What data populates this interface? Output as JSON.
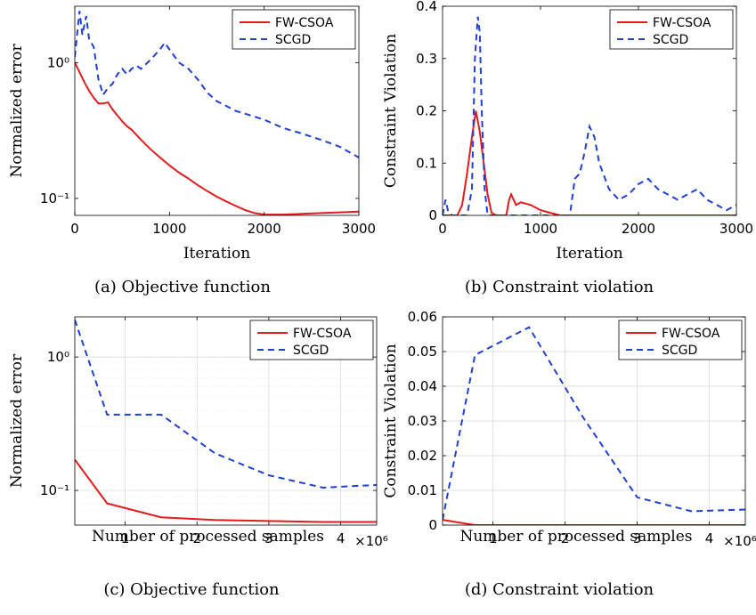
{
  "chart_data": [
    {
      "type": "line",
      "panel": "a",
      "caption": "(a) Objective function",
      "xlabel": "Iteration",
      "ylabel": "Normalized error",
      "yscale": "log",
      "xlim": [
        0,
        3000
      ],
      "ylim": [
        0.075,
        2.6
      ],
      "xticks": [
        0,
        1000,
        2000,
        3000
      ],
      "xtick_labels": [
        "0",
        "1000",
        "2000",
        "3000"
      ],
      "yticks": [
        0.1,
        1
      ],
      "ytick_labels": [
        "10⁻¹",
        "10⁰"
      ],
      "grid": false,
      "legend": "top-right",
      "series": [
        {
          "name": "FW-CSOA",
          "color": "#e41a1c",
          "style": "solid",
          "x": [
            0,
            50,
            100,
            150,
            200,
            250,
            300,
            350,
            400,
            500,
            550,
            600,
            700,
            800,
            900,
            1000,
            1100,
            1200,
            1300,
            1400,
            1500,
            1600,
            1700,
            1800,
            1900,
            2000,
            2200,
            2400,
            2600,
            2800,
            3000
          ],
          "y": [
            1.0,
            0.85,
            0.72,
            0.62,
            0.55,
            0.5,
            0.5,
            0.51,
            0.45,
            0.37,
            0.34,
            0.32,
            0.27,
            0.23,
            0.2,
            0.175,
            0.155,
            0.14,
            0.125,
            0.113,
            0.103,
            0.095,
            0.088,
            0.082,
            0.078,
            0.076,
            0.076,
            0.077,
            0.078,
            0.079,
            0.08
          ]
        },
        {
          "name": "SCGD",
          "color": "#1f3fd6",
          "style": "dashed",
          "x": [
            0,
            50,
            80,
            120,
            150,
            200,
            250,
            300,
            350,
            400,
            450,
            500,
            550,
            600,
            650,
            700,
            800,
            900,
            950,
            1000,
            1100,
            1200,
            1300,
            1400,
            1500,
            1600,
            1700,
            1800,
            1900,
            2000,
            2200,
            2400,
            2600,
            2800,
            3000
          ],
          "y": [
            1.1,
            2.4,
            1.6,
            2.2,
            1.5,
            1.3,
            0.75,
            0.58,
            0.65,
            0.7,
            0.82,
            0.9,
            0.82,
            0.9,
            0.95,
            0.9,
            1.05,
            1.25,
            1.4,
            1.25,
            1.0,
            0.9,
            0.75,
            0.6,
            0.52,
            0.48,
            0.44,
            0.42,
            0.4,
            0.38,
            0.33,
            0.3,
            0.27,
            0.24,
            0.2
          ]
        }
      ]
    },
    {
      "type": "line",
      "panel": "b",
      "caption": "(b) Constraint violation",
      "xlabel": "Iteration",
      "ylabel": "Constraint Violation",
      "yscale": "linear",
      "xlim": [
        0,
        3000
      ],
      "ylim": [
        0,
        0.4
      ],
      "xticks": [
        0,
        1000,
        2000,
        3000
      ],
      "xtick_labels": [
        "0",
        "1000",
        "2000",
        "3000"
      ],
      "yticks": [
        0,
        0.1,
        0.2,
        0.3,
        0.4
      ],
      "ytick_labels": [
        "0",
        "0.1",
        "0.2",
        "0.3",
        "0.4"
      ],
      "grid": false,
      "legend": "top-right",
      "series": [
        {
          "name": "FW-CSOA",
          "color": "#e41a1c",
          "style": "solid",
          "x": [
            0,
            150,
            200,
            250,
            300,
            340,
            380,
            420,
            460,
            500,
            550,
            600,
            650,
            680,
            700,
            750,
            800,
            900,
            1000,
            1100,
            1200,
            1300,
            3000
          ],
          "y": [
            0,
            0,
            0.02,
            0.08,
            0.15,
            0.2,
            0.16,
            0.1,
            0.04,
            0.005,
            0,
            0,
            0,
            0.03,
            0.04,
            0.02,
            0.025,
            0.02,
            0.01,
            0.005,
            0,
            0,
            0
          ]
        },
        {
          "name": "SCGD",
          "color": "#1f3fd6",
          "style": "dashed",
          "x": [
            0,
            30,
            60,
            100,
            250,
            300,
            330,
            360,
            380,
            400,
            430,
            460,
            500,
            600,
            1300,
            1350,
            1400,
            1450,
            1500,
            1550,
            1600,
            1700,
            1800,
            1900,
            2000,
            2100,
            2200,
            2300,
            2400,
            2500,
            2600,
            2700,
            2800,
            2900,
            3000
          ],
          "y": [
            0,
            0.03,
            0.005,
            0,
            0,
            0.05,
            0.3,
            0.38,
            0.35,
            0.2,
            0.05,
            0,
            0,
            0,
            0,
            0.07,
            0.08,
            0.12,
            0.17,
            0.15,
            0.1,
            0.05,
            0.03,
            0.04,
            0.06,
            0.07,
            0.05,
            0.04,
            0.03,
            0.04,
            0.05,
            0.03,
            0.02,
            0.01,
            0.02
          ]
        }
      ]
    },
    {
      "type": "line",
      "panel": "c",
      "caption": "(c) Objective function",
      "xlabel": "Number of processed samples",
      "xscale_note": "×10⁶",
      "ylabel": "Normalized error",
      "yscale": "log",
      "xlim": [
        0.3,
        4.5
      ],
      "ylim": [
        0.055,
        2.0
      ],
      "xticks": [
        1,
        2,
        3,
        4
      ],
      "xtick_labels": [
        "1",
        "2",
        "3",
        "4"
      ],
      "yticks": [
        0.1,
        1
      ],
      "ytick_labels": [
        "10⁻¹",
        "10⁰"
      ],
      "grid": true,
      "legend": "top-right",
      "series": [
        {
          "name": "FW-CSOA",
          "color": "#e41a1c",
          "style": "solid",
          "x": [
            0.3,
            0.75,
            1.5,
            2.25,
            3.0,
            3.75,
            4.5
          ],
          "y": [
            0.17,
            0.08,
            0.063,
            0.06,
            0.059,
            0.058,
            0.058
          ]
        },
        {
          "name": "SCGD",
          "color": "#1f3fd6",
          "style": "dashed",
          "x": [
            0.3,
            0.75,
            1.5,
            2.25,
            3.0,
            3.75,
            4.5
          ],
          "y": [
            1.9,
            0.37,
            0.37,
            0.19,
            0.13,
            0.105,
            0.11
          ]
        }
      ]
    },
    {
      "type": "line",
      "panel": "d",
      "caption": "(d) Constraint violation",
      "xlabel": "Number of processed samples",
      "xscale_note": "×10⁶",
      "ylabel": "Constraint Violation",
      "yscale": "linear",
      "xlim": [
        0.3,
        4.5
      ],
      "ylim": [
        0,
        0.06
      ],
      "xticks": [
        1,
        2,
        3,
        4
      ],
      "xtick_labels": [
        "1",
        "2",
        "3",
        "4"
      ],
      "yticks": [
        0,
        0.01,
        0.02,
        0.03,
        0.04,
        0.05,
        0.06
      ],
      "ytick_labels": [
        "0",
        "0.01",
        "0.02",
        "0.03",
        "0.04",
        "0.05",
        "0.06"
      ],
      "grid": true,
      "legend": "top-right",
      "series": [
        {
          "name": "FW-CSOA",
          "color": "#e41a1c",
          "style": "solid",
          "x": [
            0.3,
            0.75,
            1.5,
            2.25,
            3.0,
            3.75,
            4.5
          ],
          "y": [
            0.0015,
            0.0,
            0.0,
            0.0,
            0.0,
            0.0,
            0.0
          ]
        },
        {
          "name": "SCGD",
          "color": "#1f3fd6",
          "style": "dashed",
          "x": [
            0.3,
            0.75,
            1.5,
            2.25,
            3.0,
            3.75,
            4.5
          ],
          "y": [
            0.0015,
            0.049,
            0.057,
            0.031,
            0.008,
            0.004,
            0.0045
          ]
        }
      ]
    }
  ]
}
